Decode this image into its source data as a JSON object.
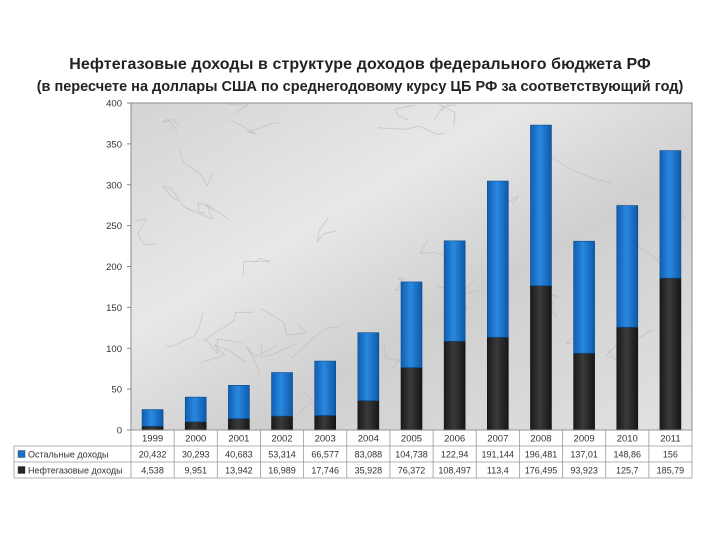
{
  "chart_data": {
    "type": "bar",
    "stacked": true,
    "title": "Нефтегазовые доходы в структуре доходов федерального бюджета РФ",
    "subtitle": "(в пересчете на доллары США по среднегодовому курсу ЦБ РФ за соответствующий год)",
    "categories": [
      "1999",
      "2000",
      "2001",
      "2002",
      "2003",
      "2004",
      "2005",
      "2006",
      "2007",
      "2008",
      "2009",
      "2010",
      "2011"
    ],
    "series": [
      {
        "name": "Нефтегазовые доходы",
        "color": "#262626",
        "values": [
          4.538,
          9.951,
          13.942,
          16.989,
          17.746,
          35.928,
          76.372,
          108.497,
          113.4,
          176.495,
          93.923,
          125.7,
          185.79
        ],
        "labels": [
          "4,538",
          "9,951",
          "13,942",
          "16,989",
          "17,746",
          "35,928",
          "76,372",
          "108,497",
          "113,4",
          "176,495",
          "93,923",
          "125,7",
          "185,79"
        ]
      },
      {
        "name": "Остальные доходы",
        "color": "#1874CD",
        "values": [
          20.432,
          30.293,
          40.683,
          53.314,
          66.577,
          83.088,
          104.738,
          122.94,
          191.144,
          196.481,
          137.01,
          148.86,
          156
        ],
        "labels": [
          "20,432",
          "30,293",
          "40,683",
          "53,314",
          "66,577",
          "83,088",
          "104,738",
          "122,94",
          "191,144",
          "196,481",
          "137,01",
          "148,86",
          "156"
        ]
      }
    ],
    "yticks": [
      0,
      50,
      100,
      150,
      200,
      250,
      300,
      350,
      400
    ],
    "ylim": [
      0,
      400
    ],
    "grid": false,
    "legend": "data-table-below"
  }
}
